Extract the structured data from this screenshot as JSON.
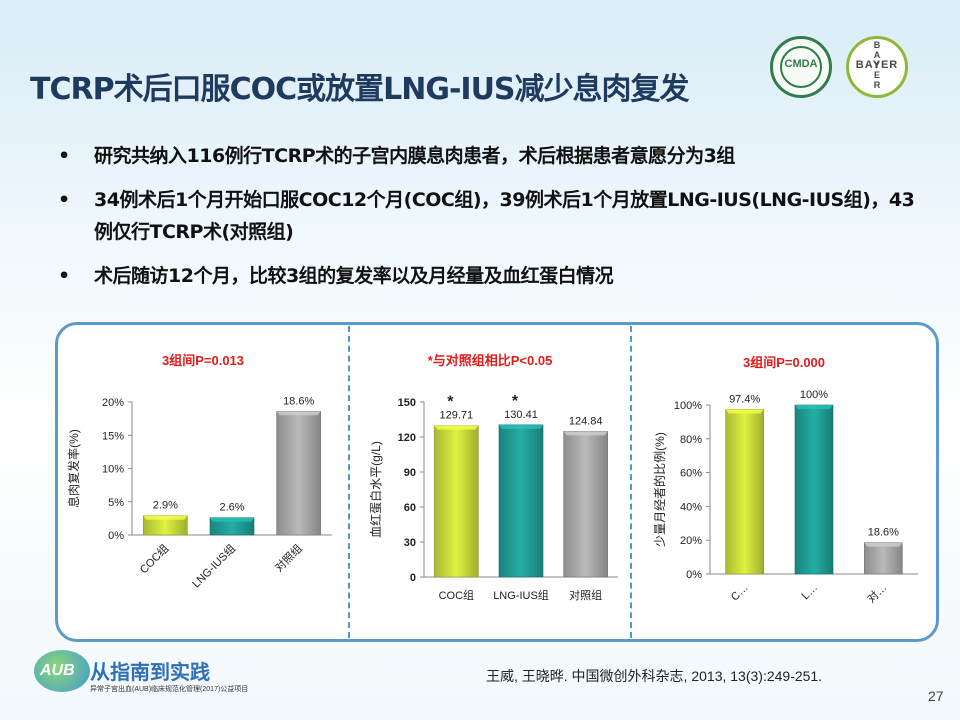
{
  "header": {
    "title": "TCRP术后口服COC或放置LNG-IUS减少息肉复发",
    "logo_cmda": "CMDA",
    "logo_bayer_h": "BAYER",
    "logo_bayer_v": "BAYER"
  },
  "bullets": [
    {
      "marker": "•",
      "text": "研究共纳入116例行TCRP术的子宫内膜息肉患者，术后根据患者意愿分为3组"
    },
    {
      "marker": "•",
      "text": "34例术后1个月开始口服COC12个月(COC组)，39例术后1个月放置LNG-IUS(LNG-IUS组)，43例仅行TCRP术(对照组)"
    },
    {
      "marker": "•",
      "text": "术后随访12个月，比较3组的复发率以及月经量及血红蛋白情况"
    }
  ],
  "footer": {
    "citation": "王威, 王晓晔. 中国微创外科杂志, 2013, 13(3):249-251.",
    "page_number": "27",
    "logo_mark": "AUB",
    "logo_text": "从指南到实践",
    "logo_subtitle": "异常子宫出血(AUB)临床规范化管理(2017)公益项目"
  },
  "colors": {
    "title": "#1f3a5f",
    "annotation_red": "#e11b1b",
    "panel_border": "#5b9bc9",
    "bar_coc": "#c6d93a",
    "bar_lng": "#1f9b94",
    "bar_control": "#a6a6a6"
  },
  "chart_data": [
    {
      "type": "bar",
      "title": "3组间P=0.013",
      "ylabel": "息肉复发率(%)",
      "categories": [
        "COC组",
        "LNG-IUS组",
        "对照组"
      ],
      "values": [
        2.9,
        2.6,
        18.6
      ],
      "data_labels": [
        "2.9%",
        "2.6%",
        "18.6%"
      ],
      "ylim": [
        0,
        20
      ],
      "yticks": [
        0,
        5,
        10,
        15,
        20
      ],
      "ytick_labels": [
        "0%",
        "5%",
        "10%",
        "15%",
        "20%"
      ],
      "bar_colors": [
        "#c6d93a",
        "#1f9b94",
        "#a6a6a6"
      ],
      "xtick_rotation": "rotated"
    },
    {
      "type": "bar",
      "title": "*与对照组相比P<0.05",
      "ylabel": "血红蛋白水平(g/L)",
      "categories": [
        "COC组",
        "LNG-IUS组",
        "对照组"
      ],
      "values": [
        129.71,
        130.41,
        124.84
      ],
      "data_labels": [
        "129.71",
        "130.41",
        "124.84"
      ],
      "significance": [
        "*",
        "*",
        ""
      ],
      "ylim": [
        0,
        150
      ],
      "yticks": [
        0,
        30,
        60,
        90,
        120,
        150
      ],
      "ytick_labels": [
        "0",
        "30",
        "60",
        "90",
        "120",
        "150"
      ],
      "bar_colors": [
        "#c6d93a",
        "#1f9b94",
        "#a6a6a6"
      ],
      "xtick_rotation": "horizontal"
    },
    {
      "type": "bar",
      "title": "3组间P=0.000",
      "ylabel": "少量月经者的比例(%)",
      "categories": [
        "C…",
        "L…",
        "对…"
      ],
      "values": [
        97.4,
        100,
        18.6
      ],
      "data_labels": [
        "97.4%",
        "100%",
        "18.6%"
      ],
      "ylim": [
        0,
        100
      ],
      "yticks": [
        0,
        20,
        40,
        60,
        80,
        100
      ],
      "ytick_labels": [
        "0%",
        "20%",
        "40%",
        "60%",
        "80%",
        "100%"
      ],
      "bar_colors": [
        "#c6d93a",
        "#1f9b94",
        "#a6a6a6"
      ],
      "xtick_rotation": "rotated"
    }
  ]
}
